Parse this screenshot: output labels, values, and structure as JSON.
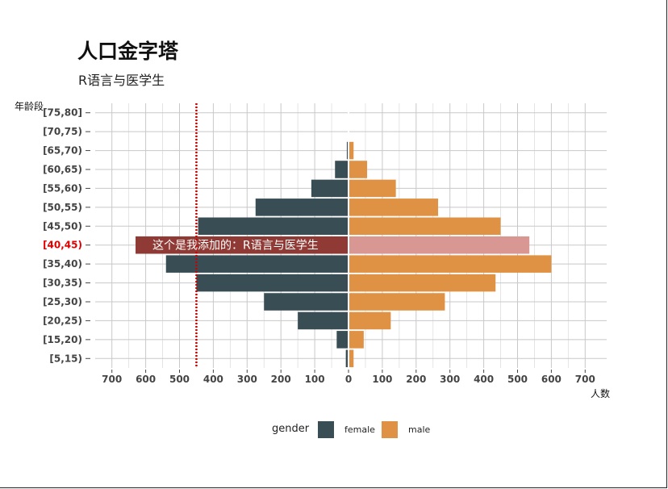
{
  "title": "人口金字塔",
  "subtitle": "R语言与医学生",
  "chart_data": {
    "type": "bar",
    "orientation": "horizontal",
    "layout": "population-pyramid",
    "categories": [
      "[5,15)",
      "[15,20)",
      "[20,25)",
      "[25,30)",
      "[30,35)",
      "[35,40)",
      "[40,45)",
      "[45,50)",
      "[50,55)",
      "[55,60)",
      "[60,65)",
      "[65,70)",
      "[70,75)",
      "[75,80]"
    ],
    "series": [
      {
        "name": "female",
        "color": "#394d55",
        "values": [
          8,
          35,
          150,
          250,
          450,
          540,
          630,
          445,
          275,
          110,
          40,
          5,
          1,
          1
        ]
      },
      {
        "name": "male",
        "color": "#e09244",
        "values": [
          15,
          45,
          125,
          285,
          435,
          600,
          535,
          450,
          265,
          140,
          55,
          15,
          1,
          1
        ]
      }
    ],
    "highlight": {
      "category": "[40,45)",
      "female_color": "#8f3a35",
      "male_color": "#d99793",
      "tick_color": "#e10000",
      "annotation": "这个是我添加的：R语言与医学生"
    },
    "reference_line": {
      "x": -450,
      "color": "#cc0000",
      "style": "dotted"
    },
    "x_ticks": [
      -700,
      -600,
      -500,
      -400,
      -300,
      -200,
      -100,
      0,
      100,
      200,
      300,
      400,
      500,
      600,
      700
    ],
    "x_tick_labels": [
      "700",
      "600",
      "500",
      "400",
      "300",
      "200",
      "100",
      "0",
      "100",
      "200",
      "300",
      "400",
      "500",
      "600",
      "700"
    ],
    "xlim": [
      -750,
      750
    ],
    "xlabel": "人数",
    "ylabel": "年龄段",
    "grid": true,
    "legend": {
      "title": "gender",
      "position": "bottom",
      "items": [
        "female",
        "male"
      ]
    }
  }
}
